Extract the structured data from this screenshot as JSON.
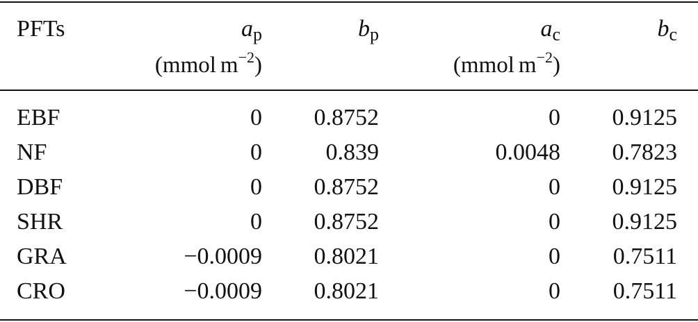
{
  "table": {
    "headers": {
      "pfts": "PFTs",
      "ap": {
        "var": "a",
        "sub": "p",
        "unit_open": "(mmol",
        "unit_m": "m",
        "unit_exp": "−2",
        "unit_close": ")"
      },
      "bp": {
        "var": "b",
        "sub": "p"
      },
      "ac": {
        "var": "a",
        "sub": "c",
        "unit_open": "(mmol",
        "unit_m": "m",
        "unit_exp": "−2",
        "unit_close": ")"
      },
      "bc": {
        "var": "b",
        "sub": "c"
      }
    },
    "rows": [
      {
        "pft": "EBF",
        "ap": "0",
        "bp": "0.8752",
        "ac": "0",
        "bc": "0.9125"
      },
      {
        "pft": "NF",
        "ap": "0",
        "bp": "0.839",
        "ac": "0.0048",
        "bc": "0.7823"
      },
      {
        "pft": "DBF",
        "ap": "0",
        "bp": "0.8752",
        "ac": "0",
        "bc": "0.9125"
      },
      {
        "pft": "SHR",
        "ap": "0",
        "bp": "0.8752",
        "ac": "0",
        "bc": "0.9125"
      },
      {
        "pft": "GRA",
        "ap": "−0.0009",
        "bp": "0.8021",
        "ac": "0",
        "bc": "0.7511"
      },
      {
        "pft": "CRO",
        "ap": "−0.0009",
        "bp": "0.8021",
        "ac": "0",
        "bc": "0.7511"
      }
    ]
  }
}
